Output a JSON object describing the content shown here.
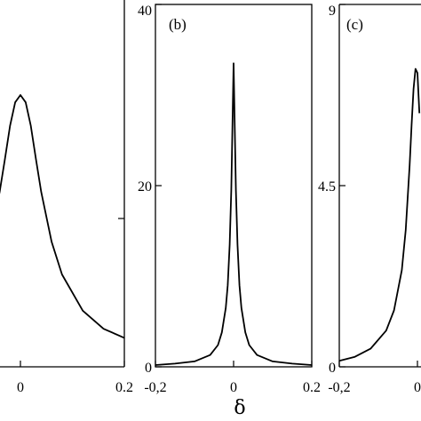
{
  "chart_data": [
    {
      "type": "line",
      "panel_label": "",
      "xlim": [
        -0.2,
        0.2
      ],
      "x_ticks": [
        "0",
        "0.2"
      ],
      "y_ticks": [],
      "series": [
        {
          "x": [
            -0.2,
            -0.16,
            -0.12,
            -0.08,
            -0.06,
            -0.04,
            -0.03,
            -0.02,
            -0.01,
            0,
            0.01,
            0.02,
            0.03,
            0.04,
            0.06,
            0.08,
            0.12,
            0.16,
            0.2
          ],
          "values": [
            3.2,
            4.2,
            6.2,
            10.2,
            13.8,
            19.3,
            22.9,
            26.6,
            29.2,
            30,
            29.2,
            26.6,
            22.9,
            19.3,
            13.8,
            10.2,
            6.2,
            4.2,
            3.2
          ]
        }
      ]
    },
    {
      "type": "line",
      "panel_label": "(b)",
      "xlim": [
        -0.2,
        0.2
      ],
      "ylim": [
        0,
        40
      ],
      "x_ticks": [
        "-0,2",
        "0",
        "0.2"
      ],
      "y_ticks": [
        "0",
        "20",
        "40"
      ],
      "series": [
        {
          "x": [
            -0.2,
            -0.15,
            -0.1,
            -0.06,
            -0.04,
            -0.03,
            -0.02,
            -0.015,
            -0.01,
            -0.006,
            -0.003,
            0,
            0.003,
            0.006,
            0.01,
            0.015,
            0.02,
            0.03,
            0.04,
            0.06,
            0.1,
            0.15,
            0.2
          ],
          "values": [
            0.2,
            0.35,
            0.6,
            1.3,
            2.4,
            3.8,
            6.5,
            9.0,
            13.5,
            19.5,
            26.5,
            33.5,
            26.5,
            19.5,
            13.5,
            9.0,
            6.5,
            3.8,
            2.4,
            1.3,
            0.6,
            0.35,
            0.2
          ]
        }
      ]
    },
    {
      "type": "line",
      "panel_label": "(c)",
      "xlim": [
        -0.2,
        0.2
      ],
      "ylim": [
        0,
        9
      ],
      "x_ticks": [
        "-0,2",
        "0"
      ],
      "y_ticks": [
        "0",
        "4.5",
        "9"
      ],
      "series": [
        {
          "x": [
            -0.2,
            -0.16,
            -0.12,
            -0.08,
            -0.06,
            -0.04,
            -0.03,
            -0.02,
            -0.015,
            -0.01,
            -0.005,
            0,
            0.005
          ],
          "values": [
            0.15,
            0.25,
            0.45,
            0.9,
            1.4,
            2.4,
            3.4,
            5.0,
            6.0,
            6.9,
            7.4,
            7.3,
            6.3
          ]
        }
      ]
    }
  ],
  "xlabel": "δ"
}
